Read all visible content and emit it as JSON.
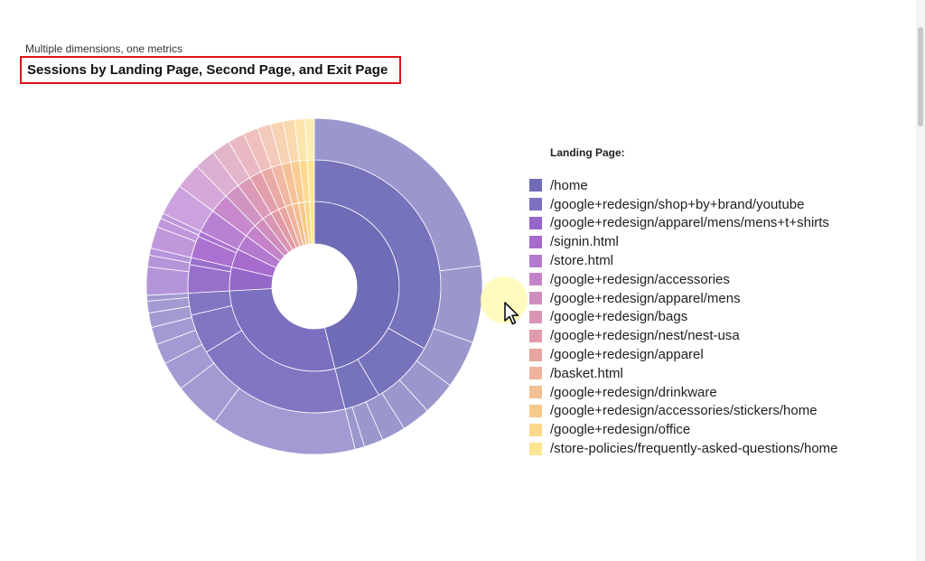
{
  "header": {
    "subtitle": "Multiple dimensions, one metrics",
    "title": "Sessions by Landing Page, Second Page, and Exit Page"
  },
  "chart_data": {
    "type": "sunburst",
    "title": "Sessions by Landing Page, Second Page, and Exit Page",
    "subtitle": "Multiple dimensions, one metrics",
    "legend_title": "Landing Page:",
    "legend_position": "right",
    "levels": [
      "Landing Page",
      "Second Page",
      "Exit Page"
    ],
    "categories": [
      {
        "name": "/home",
        "color": "#6f6bb7",
        "value": 46
      },
      {
        "name": "/google+redesign/shop+by+brand/youtube",
        "color": "#7b6fc0",
        "value": 28
      },
      {
        "name": "/google+redesign/apparel/mens/mens+t+shirts",
        "color": "#9467c9",
        "value": 4.5
      },
      {
        "name": "/signin.html",
        "color": "#a76acd",
        "value": 3.5
      },
      {
        "name": "/store.html",
        "color": "#b57ad0",
        "value": 3
      },
      {
        "name": "/google+redesign/accessories",
        "color": "#c483c9",
        "value": 2.5
      },
      {
        "name": "/google+redesign/apparel/mens",
        "color": "#cf8dbe",
        "value": 2
      },
      {
        "name": "/google+redesign/bags",
        "color": "#d996b4",
        "value": 1.8
      },
      {
        "name": "/google+redesign/nest/nest-usa",
        "color": "#e19aa8",
        "value": 1.6
      },
      {
        "name": "/google+redesign/apparel",
        "color": "#e8a4a0",
        "value": 1.4
      },
      {
        "name": "/basket.html",
        "color": "#efb39d",
        "value": 1.3
      },
      {
        "name": "/google+redesign/drinkware",
        "color": "#f4bf93",
        "value": 1.2
      },
      {
        "name": "/google+redesign/accessories/stickers/home",
        "color": "#f8c98c",
        "value": 1.1
      },
      {
        "name": "/google+redesign/office",
        "color": "#fbd88a",
        "value": 1.0
      },
      {
        "name": "/store-policies/frequently-asked-questions/home",
        "color": "#fde591",
        "value": 0.9
      }
    ]
  }
}
